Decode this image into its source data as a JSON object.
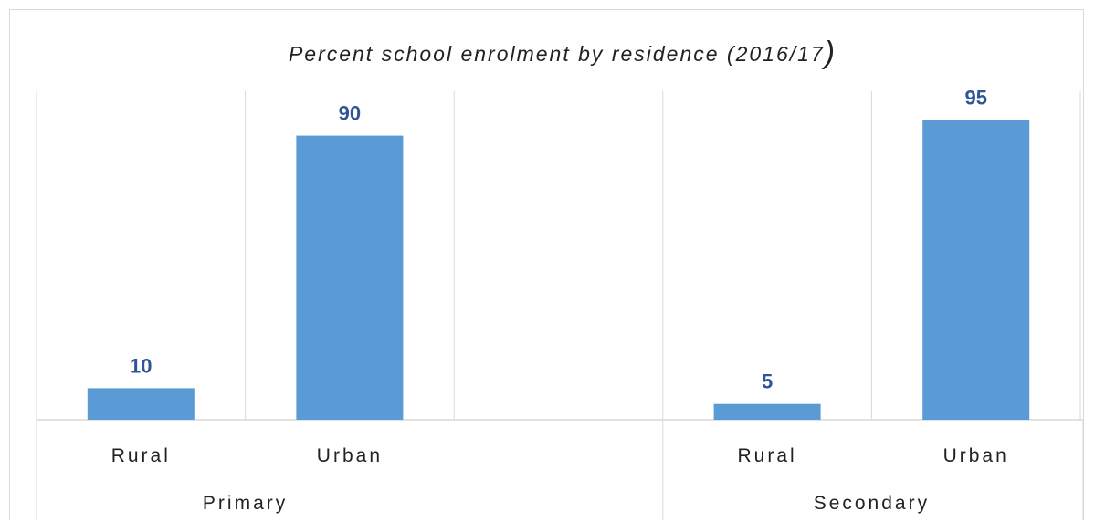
{
  "chart_data": {
    "type": "bar",
    "title": "Percent school enrolment by residence (2016/17",
    "title_close": ")",
    "groups": [
      {
        "name": "Primary",
        "categories": [
          "Rural",
          "Urban"
        ],
        "values": [
          10,
          90
        ]
      },
      {
        "name": "Secondary",
        "categories": [
          "Rural",
          "Urban"
        ],
        "values": [
          5,
          95
        ]
      }
    ],
    "bar_color": "#5b9bd5",
    "label_color": "#2f5597",
    "grid_color": "#d9d9d9",
    "ylim": [
      0,
      100
    ],
    "data_labels": true,
    "legend": "none"
  }
}
